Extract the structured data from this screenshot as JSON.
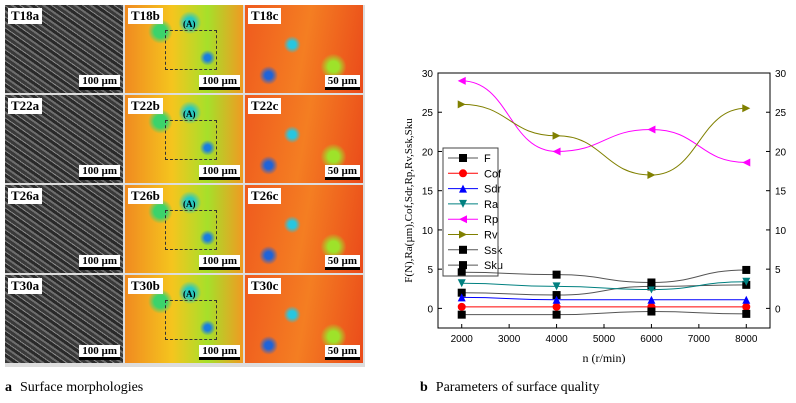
{
  "panel_a": {
    "caption_letter": "a",
    "caption": "Surface morphologies",
    "rows": [
      {
        "a": "T18a",
        "b": "T18b",
        "c": "T18c"
      },
      {
        "a": "T22a",
        "b": "T22b",
        "c": "T22c"
      },
      {
        "a": "T26a",
        "b": "T26b",
        "c": "T26c"
      },
      {
        "a": "T30a",
        "b": "T30b",
        "c": "T30c"
      }
    ],
    "scale_a": "100 µm",
    "scale_b": "100 µm",
    "scale_c": "50 µm",
    "region_label": "(A)"
  },
  "panel_b": {
    "caption_letter": "b",
    "caption": "Parameters of surface quality"
  },
  "chart_data": {
    "type": "line",
    "xlabel": "n (r/min)",
    "ylabel": "F(N),Ra(µm),Cof,Sdr,Rp,Rv,Ssk,Sku",
    "xlim": [
      1500,
      8500
    ],
    "ylim": [
      -2.5,
      30
    ],
    "xticks": [
      2000,
      3000,
      4000,
      5000,
      6000,
      7000,
      8000
    ],
    "yticks": [
      0,
      5,
      10,
      15,
      20,
      25,
      30
    ],
    "legend_position": "left",
    "x": [
      2000,
      4000,
      6000,
      8000
    ],
    "series": [
      {
        "name": "F",
        "color": "#000000",
        "marker": "square",
        "values": [
          2.0,
          1.7,
          2.8,
          3.0
        ]
      },
      {
        "name": "Cof",
        "color": "#ff0000",
        "marker": "circle",
        "values": [
          0.2,
          0.2,
          0.2,
          0.2
        ]
      },
      {
        "name": "Sdr",
        "color": "#0000ff",
        "marker": "triangle-up",
        "values": [
          1.4,
          1.1,
          1.1,
          1.1
        ]
      },
      {
        "name": "Ra",
        "color": "#008080",
        "marker": "triangle-down",
        "values": [
          3.2,
          2.8,
          2.4,
          3.4
        ]
      },
      {
        "name": "Rp",
        "color": "#ff00ff",
        "marker": "triangle-left",
        "values": [
          29,
          20,
          22.8,
          18.6
        ]
      },
      {
        "name": "Rv",
        "color": "#808000",
        "marker": "triangle-right",
        "values": [
          26,
          22,
          17,
          25.5
        ]
      },
      {
        "name": "Ssk",
        "color": "#000000",
        "marker": "square",
        "values": [
          -0.8,
          -0.8,
          -0.4,
          -0.7
        ]
      },
      {
        "name": "Sku",
        "color": "#000000",
        "marker": "square",
        "values": [
          4.6,
          4.3,
          3.3,
          4.9
        ]
      }
    ]
  }
}
